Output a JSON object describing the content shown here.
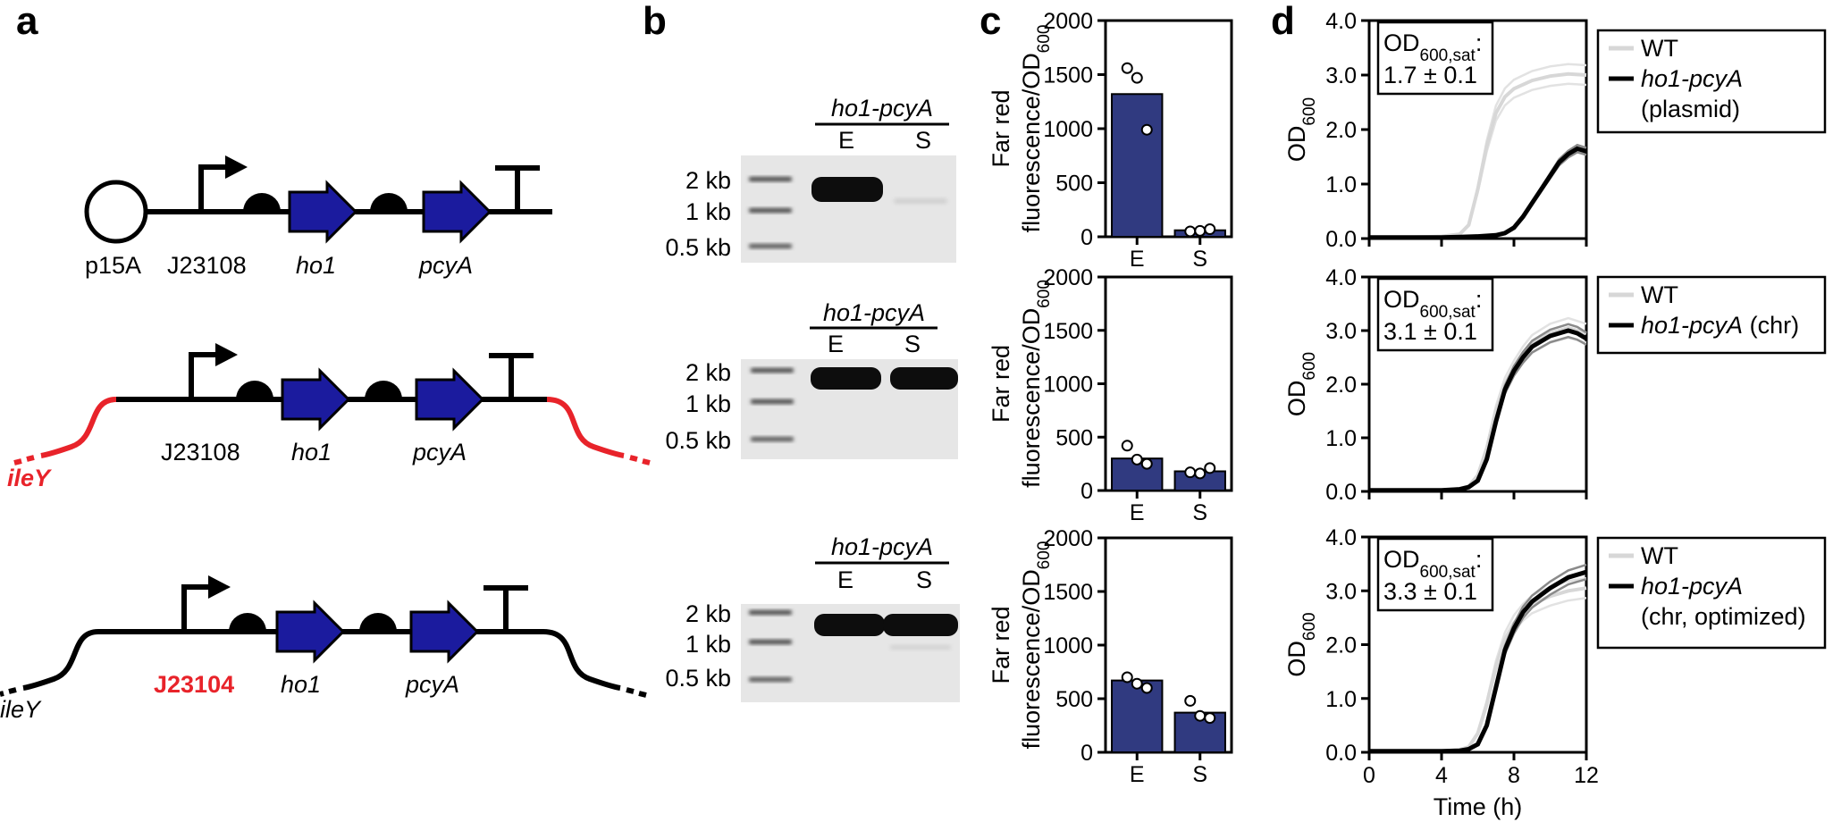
{
  "panels": {
    "a": "a",
    "b": "b",
    "c": "c",
    "d": "d"
  },
  "colors": {
    "gene_fill": "#1b1b9e",
    "bar_fill": "#303a80",
    "highlight_red": "#e8232a",
    "wt_line": "#d7d7d7",
    "mutant_line": "#000000"
  },
  "panel_a": {
    "constructs": [
      {
        "origin_label": "p15A",
        "promoter_label": "J23108",
        "gene1": "ho1",
        "gene2": "pcyA"
      },
      {
        "locus_label": "ileY",
        "promoter_label": "J23108",
        "gene1": "ho1",
        "gene2": "pcyA"
      },
      {
        "locus_label": "ileY",
        "promoter_label": "J23104",
        "gene1": "ho1",
        "gene2": "pcyA"
      }
    ]
  },
  "panel_b": {
    "gels": [
      {
        "header": "ho1-pcyA",
        "lanes": [
          "E",
          "S"
        ],
        "ladder": [
          "2 kb",
          "1 kb",
          "0.5 kb"
        ]
      },
      {
        "header": "ho1-pcyA",
        "lanes": [
          "E",
          "S"
        ],
        "ladder": [
          "2 kb",
          "1 kb",
          "0.5 kb"
        ]
      },
      {
        "header": "ho1-pcyA",
        "lanes": [
          "E",
          "S"
        ],
        "ladder": [
          "2 kb",
          "1 kb",
          "0.5 kb"
        ]
      }
    ]
  },
  "chart_data": [
    {
      "type": "bar",
      "panel": "c-top",
      "categories": [
        "E",
        "S"
      ],
      "values": [
        1320,
        60
      ],
      "points": [
        [
          1560,
          1470,
          990
        ],
        [
          50,
          55,
          70
        ]
      ],
      "ylabel_line1": "Far red",
      "ylabel_line2": "fluorescence/OD",
      "ylabel_sub": "600",
      "ylim": [
        0,
        2000
      ],
      "yticks": [
        "0",
        "500",
        "1000",
        "1500",
        "2000"
      ]
    },
    {
      "type": "bar",
      "panel": "c-middle",
      "categories": [
        "E",
        "S"
      ],
      "values": [
        300,
        180
      ],
      "points": [
        [
          420,
          290,
          250
        ],
        [
          170,
          160,
          210
        ]
      ],
      "ylabel_line1": "Far red",
      "ylabel_line2": "fluorescence/OD",
      "ylabel_sub": "600",
      "ylim": [
        0,
        2000
      ],
      "yticks": [
        "0",
        "500",
        "1000",
        "1500",
        "2000"
      ]
    },
    {
      "type": "bar",
      "panel": "c-bottom",
      "categories": [
        "E",
        "S"
      ],
      "values": [
        670,
        370
      ],
      "points": [
        [
          700,
          640,
          600
        ],
        [
          480,
          340,
          320
        ]
      ],
      "ylabel_line1": "Far red",
      "ylabel_line2": "fluorescence/OD",
      "ylabel_sub": "600",
      "ylim": [
        0,
        2000
      ],
      "yticks": [
        "0",
        "500",
        "1000",
        "1500",
        "2000"
      ]
    },
    {
      "type": "line",
      "panel": "d-top",
      "xlim": [
        0,
        12
      ],
      "ylim": [
        0,
        4
      ],
      "yticks": [
        "0.0",
        "1.0",
        "2.0",
        "3.0",
        "4.0"
      ],
      "ylabel": "OD",
      "ylabel_sub": "600",
      "annotation": {
        "main": "OD",
        "sub": "600,sat",
        "colon": ":",
        "value": "1.7 ± 0.1"
      },
      "legend": [
        {
          "name": "WT",
          "name2": ""
        },
        {
          "name": "ho1-pcyA",
          "name2": "(plasmid)"
        }
      ],
      "series": [
        {
          "name": "WT",
          "x": [
            0,
            1,
            2,
            3,
            4,
            5,
            5.5,
            6,
            6.5,
            7,
            7.5,
            8,
            9,
            10,
            11,
            12
          ],
          "y": [
            0.02,
            0.02,
            0.02,
            0.03,
            0.04,
            0.08,
            0.25,
            0.9,
            1.7,
            2.3,
            2.6,
            2.75,
            2.9,
            2.98,
            3.02,
            3.0
          ]
        },
        {
          "name": "ho1-pcyA",
          "x": [
            0,
            2,
            4,
            5,
            6,
            7,
            7.5,
            8,
            8.5,
            9,
            9.5,
            10,
            10.5,
            11,
            11.5,
            12
          ],
          "y": [
            0.02,
            0.02,
            0.02,
            0.03,
            0.04,
            0.06,
            0.1,
            0.2,
            0.4,
            0.65,
            0.9,
            1.15,
            1.4,
            1.55,
            1.65,
            1.6
          ]
        }
      ]
    },
    {
      "type": "line",
      "panel": "d-middle",
      "xlim": [
        0,
        12
      ],
      "ylim": [
        0,
        4
      ],
      "yticks": [
        "0.0",
        "1.0",
        "2.0",
        "3.0",
        "4.0"
      ],
      "ylabel": "OD",
      "ylabel_sub": "600",
      "annotation": {
        "main": "OD",
        "sub": "600,sat",
        "colon": ":",
        "value": "3.1 ± 0.1"
      },
      "legend": [
        {
          "name": "WT",
          "name2": ""
        },
        {
          "name": "ho1-pcyA",
          "name2": "(chr)"
        }
      ],
      "series": [
        {
          "name": "WT",
          "x": [
            0,
            2,
            4,
            5,
            5.5,
            6,
            6.5,
            7,
            7.5,
            8,
            8.5,
            9,
            10,
            11,
            12
          ],
          "y": [
            0.02,
            0.02,
            0.02,
            0.05,
            0.1,
            0.3,
            0.8,
            1.5,
            2.0,
            2.3,
            2.55,
            2.75,
            2.95,
            3.05,
            2.95
          ]
        },
        {
          "name": "ho1-pcyA",
          "x": [
            0,
            2,
            4,
            5,
            5.5,
            6,
            6.5,
            7,
            7.5,
            8,
            8.5,
            9,
            10,
            11,
            11.5,
            12
          ],
          "y": [
            0.02,
            0.02,
            0.02,
            0.04,
            0.08,
            0.2,
            0.6,
            1.3,
            1.9,
            2.25,
            2.5,
            2.7,
            2.9,
            3.0,
            2.95,
            2.85
          ]
        }
      ]
    },
    {
      "type": "line",
      "panel": "d-bottom",
      "xlim": [
        0,
        12
      ],
      "ylim": [
        0,
        4
      ],
      "yticks": [
        "0.0",
        "1.0",
        "2.0",
        "3.0",
        "4.0"
      ],
      "xticks": [
        "0",
        "4",
        "8",
        "12"
      ],
      "xlabel": "Time (h)",
      "ylabel": "OD",
      "ylabel_sub": "600",
      "annotation": {
        "main": "OD",
        "sub": "600,sat",
        "colon": ":",
        "value": "3.3 ± 0.1"
      },
      "legend": [
        {
          "name": "WT",
          "name2": ""
        },
        {
          "name": "ho1-pcyA",
          "name2": "(chr, optimized)"
        }
      ],
      "series": [
        {
          "name": "WT",
          "x": [
            0,
            2,
            4,
            5,
            5.5,
            6,
            6.5,
            7,
            7.5,
            8,
            8.5,
            9,
            10,
            11,
            12
          ],
          "y": [
            0.02,
            0.02,
            0.02,
            0.05,
            0.1,
            0.35,
            0.9,
            1.6,
            2.1,
            2.4,
            2.6,
            2.75,
            2.9,
            3.0,
            3.05
          ]
        },
        {
          "name": "ho1-pcyA",
          "x": [
            0,
            2,
            4,
            5,
            5.5,
            6,
            6.5,
            7,
            7.5,
            8,
            8.5,
            9,
            10,
            11,
            12
          ],
          "y": [
            0.02,
            0.02,
            0.02,
            0.03,
            0.06,
            0.15,
            0.5,
            1.2,
            1.9,
            2.3,
            2.6,
            2.8,
            3.05,
            3.25,
            3.35
          ]
        }
      ]
    }
  ]
}
